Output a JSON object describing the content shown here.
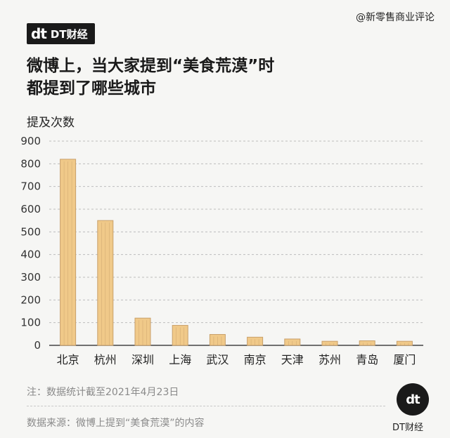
{
  "watermark_top": "@新零售商业评论",
  "brand": {
    "logo": "dt",
    "name": "DT财经"
  },
  "title_line1": "微博上，当大家提到“美食荒漠”时",
  "title_line2": "都提到了哪些城市",
  "note": "注：数据统计截至2021年4月23日",
  "source": "数据来源：微博上提到“美食荒漠”的内容",
  "corner": {
    "logo": "dt",
    "name": "DT财经"
  },
  "chart_data": {
    "type": "bar",
    "ylabel": "提及次数",
    "ylim": [
      0,
      900
    ],
    "yticks": [
      0,
      100,
      200,
      300,
      400,
      500,
      600,
      700,
      800,
      900
    ],
    "grid": true,
    "categories": [
      "北京",
      "杭州",
      "深圳",
      "上海",
      "武汉",
      "南京",
      "天津",
      "苏州",
      "青岛",
      "厦门"
    ],
    "values": [
      820,
      550,
      120,
      88,
      48,
      36,
      28,
      18,
      20,
      18
    ],
    "colors": {
      "bar": "#f0c989",
      "bar_edge": "#c9a06a",
      "grid": "#bdbdbd"
    }
  }
}
